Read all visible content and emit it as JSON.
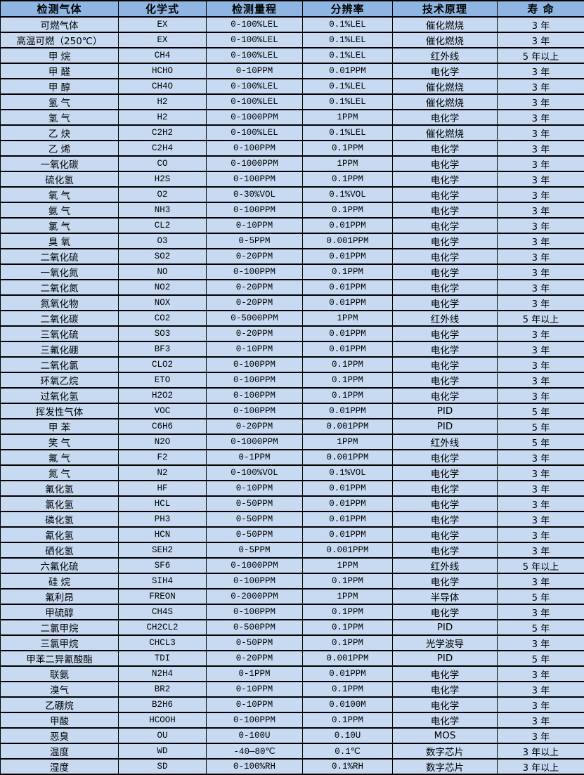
{
  "colors": {
    "header_bg": "#8fb6e3",
    "row_bg": "#c7daf2",
    "border": "#000000",
    "text": "#000000"
  },
  "table": {
    "columns": [
      "检测气体",
      "化学式",
      "检测量程",
      "分辨率",
      "技术原理",
      "寿 命"
    ],
    "rows": [
      [
        "可燃气体",
        "EX",
        "0-100%LEL",
        "0.1%LEL",
        "催化燃烧",
        "3 年"
      ],
      [
        "高温可燃（250℃）",
        "EX",
        "0-100%LEL",
        "0.1%LEL",
        "催化燃烧",
        "3 年"
      ],
      [
        "甲 烷",
        "CH4",
        "0-100%LEL",
        "0.1%LEL",
        "红外线",
        "5 年以上"
      ],
      [
        "甲 醛",
        "HCHO",
        "0-10PPM",
        "0.01PPM",
        "电化学",
        "3 年"
      ],
      [
        "甲 醇",
        "CH4O",
        "0-100%LEL",
        "0.1%LEL",
        "催化燃烧",
        "3 年"
      ],
      [
        "氢 气",
        "H2",
        "0-100%LEL",
        "0.1%LEL",
        "催化燃烧",
        "3 年"
      ],
      [
        "氢 气",
        "H2",
        "0-1000PPM",
        "1PPM",
        "电化学",
        "3 年"
      ],
      [
        "乙 炔",
        "C2H2",
        "0-100%LEL",
        "0.1%LEL",
        "催化燃烧",
        "3 年"
      ],
      [
        "乙 烯",
        "C2H4",
        "0-100PPM",
        "0.1PPM",
        "电化学",
        "3 年"
      ],
      [
        "一氧化碳",
        "CO",
        "0-1000PPM",
        "1PPM",
        "电化学",
        "3 年"
      ],
      [
        "硫化氢",
        "H2S",
        "0-100PPM",
        "0.1PPM",
        "电化学",
        "3 年"
      ],
      [
        "氧 气",
        "O2",
        "0-30%VOL",
        "0.1%VOL",
        "电化学",
        "3 年"
      ],
      [
        "氨 气",
        "NH3",
        "0-100PPM",
        "0.1PPM",
        "电化学",
        "3 年"
      ],
      [
        "氯 气",
        "CL2",
        "0-10PPM",
        "0.01PPM",
        "电化学",
        "3 年"
      ],
      [
        "臭 氧",
        "O3",
        "0-5PPM",
        "0.001PPM",
        "电化学",
        "3 年"
      ],
      [
        "二氧化硫",
        "SO2",
        "0-20PPM",
        "0.01PPM",
        "电化学",
        "3 年"
      ],
      [
        "一氧化氮",
        "NO",
        "0-100PPM",
        "0.1PPM",
        "电化学",
        "3 年"
      ],
      [
        "二氧化氮",
        "NO2",
        "0-20PPM",
        "0.01PPM",
        "电化学",
        "3 年"
      ],
      [
        "氮氧化物",
        "NOX",
        "0-20PPM",
        "0.01PPM",
        "电化学",
        "3 年"
      ],
      [
        "二氧化碳",
        "CO2",
        "0-5000PPM",
        "1PPM",
        "红外线",
        "5 年以上"
      ],
      [
        "三氧化硫",
        "SO3",
        "0-20PPM",
        "0.01PPM",
        "电化学",
        "3 年"
      ],
      [
        "三氟化硼",
        "BF3",
        "0-10PPM",
        "0.01PPM",
        "电化学",
        "3 年"
      ],
      [
        "二氧化氯",
        "CLO2",
        "0-100PPM",
        "0.1PPM",
        "电化学",
        "3 年"
      ],
      [
        "环氧乙烷",
        "ETO",
        "0-100PPM",
        "0.1PPM",
        "电化学",
        "3 年"
      ],
      [
        "过氧化氢",
        "H2O2",
        "0-100PPM",
        "0.1PPM",
        "电化学",
        "3 年"
      ],
      [
        "挥发性气体",
        "VOC",
        "0-100PPM",
        "0.01PPM",
        "PID",
        "5 年"
      ],
      [
        "甲 苯",
        "C6H6",
        "0-20PPM",
        "0.001PPM",
        "PID",
        "5 年"
      ],
      [
        "笑 气",
        "N2O",
        "0-1000PPM",
        "1PPM",
        "红外线",
        "5 年"
      ],
      [
        "氟 气",
        "F2",
        "0-1PPM",
        "0.001PPM",
        "电化学",
        "3 年"
      ],
      [
        "氮 气",
        "N2",
        "0-100%VOL",
        "0.1%VOL",
        "电化学",
        "3 年"
      ],
      [
        "氟化氢",
        "HF",
        "0-10PPM",
        "0.01PPM",
        "电化学",
        "3 年"
      ],
      [
        "氯化氢",
        "HCL",
        "0-50PPM",
        "0.01PPM",
        "电化学",
        "3 年"
      ],
      [
        "磷化氢",
        "PH3",
        "0-50PPM",
        "0.01PPM",
        "电化学",
        "3 年"
      ],
      [
        "氰化氢",
        "HCN",
        "0-50PPM",
        "0.01PPM",
        "电化学",
        "3 年"
      ],
      [
        "硒化氢",
        "SEH2",
        "0-5PPM",
        "0.001PPM",
        "电化学",
        "3 年"
      ],
      [
        "六氟化硫",
        "SF6",
        "0-1000PPM",
        "1PPM",
        "红外线",
        "5 年以上"
      ],
      [
        "硅 烷",
        "SIH4",
        "0-100PPM",
        "0.1PPM",
        "电化学",
        "3 年"
      ],
      [
        "氟利昂",
        "FREON",
        "0-2000PPM",
        "1PPM",
        "半导体",
        "5 年"
      ],
      [
        "甲硫醇",
        "CH4S",
        "0-100PPM",
        "0.1PPM",
        "电化学",
        "3 年"
      ],
      [
        "二氯甲烷",
        "CH2CL2",
        "0-500PPM",
        "0.1PPM",
        "PID",
        "5 年"
      ],
      [
        "三氯甲烷",
        "CHCL3",
        "0-50PPM",
        "0.1PPM",
        "光学波导",
        "3 年"
      ],
      [
        "甲苯二异氰酸酯",
        "TDI",
        "0-20PPM",
        "0.001PPM",
        "PID",
        "5 年"
      ],
      [
        "联氨",
        "N2H4",
        "0-1PPM",
        "0.01PPM",
        "电化学",
        "3 年"
      ],
      [
        "溴气",
        "BR2",
        "0-10PPM",
        "0.1PPM",
        "电化学",
        "3 年"
      ],
      [
        "乙硼烷",
        "B2H6",
        "0-10PPM",
        "0.0100M",
        "电化学",
        "3 年"
      ],
      [
        "甲酸",
        "HCOOH",
        "0-100PPM",
        "0.1PPM",
        "电化学",
        "3 年"
      ],
      [
        "恶臭",
        "OU",
        "0-100U",
        "0.10U",
        "MOS",
        "3 年"
      ],
      [
        "温度",
        "WD",
        "-40—80℃",
        "0.1℃",
        "数字芯片",
        "3 年以上"
      ],
      [
        "湿度",
        "SD",
        "0-100%RH",
        "0.1%RH",
        "数字芯片",
        "3 年以上"
      ]
    ]
  }
}
